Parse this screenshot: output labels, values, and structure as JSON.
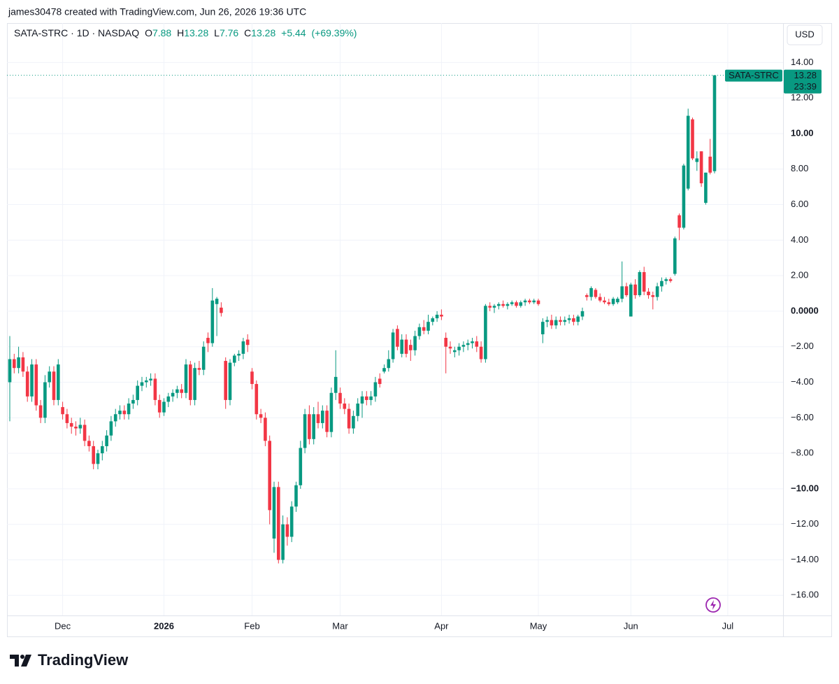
{
  "chart_data": {
    "type": "candlestick",
    "attribution": "james30478 created with TradingView.com, Jun 26, 2026 19:36 UTC",
    "symbol": "SATA-STRC · 1D · NASDAQ",
    "ohlc_labels": [
      "O",
      "H",
      "L",
      "C"
    ],
    "change": "+5.44",
    "change_pct": "(+69.39%)",
    "currency": "USD",
    "countdown": "23:39",
    "series_name": "SATA-STRC",
    "brand": "TradingView",
    "up_color": "#089981",
    "down_color": "#f23645",
    "ylim": [
      -17.13,
      16.14
    ],
    "yticks": [
      {
        "value": 14,
        "label": "14.00"
      },
      {
        "value": 12,
        "label": "12.00"
      },
      {
        "value": 10,
        "label": "10.00",
        "bold": true
      },
      {
        "value": 8,
        "label": "8.00"
      },
      {
        "value": 6,
        "label": "6.00"
      },
      {
        "value": 4,
        "label": "4.00"
      },
      {
        "value": 2,
        "label": "2.00"
      },
      {
        "value": 0,
        "label": "0.0000",
        "bold": true
      },
      {
        "value": -2,
        "label": "−2.00"
      },
      {
        "value": -4,
        "label": "−4.00"
      },
      {
        "value": -6,
        "label": "−6.00"
      },
      {
        "value": -8,
        "label": "−8.00"
      },
      {
        "value": -10,
        "label": "−10.00",
        "bold": true
      },
      {
        "value": -12,
        "label": "−12.00"
      },
      {
        "value": -14,
        "label": "−14.00"
      },
      {
        "value": -16,
        "label": "−16.00"
      }
    ],
    "xticks": [
      {
        "value": 12,
        "label": "Dec"
      },
      {
        "value": 35,
        "label": "2026",
        "bold": true
      },
      {
        "value": 55,
        "label": "Feb"
      },
      {
        "value": 75,
        "label": "Mar"
      },
      {
        "value": 98,
        "label": "Apr"
      },
      {
        "value": 120,
        "label": "May"
      },
      {
        "value": 141,
        "label": "Jun"
      },
      {
        "value": 163,
        "label": "Jul"
      }
    ],
    "grid": true,
    "ohlc": [
      [
        -4.0,
        -1.4,
        -6.2,
        -2.7
      ],
      [
        -2.7,
        -2.4,
        -3.5,
        -3.2
      ],
      [
        -3.2,
        -2.0,
        -3.5,
        -2.6
      ],
      [
        -2.6,
        -2.3,
        -3.7,
        -3.4
      ],
      [
        -3.4,
        -3.1,
        -5.1,
        -4.8
      ],
      [
        -4.8,
        -2.7,
        -5.1,
        -3.0
      ],
      [
        -3.0,
        -2.7,
        -5.6,
        -5.3
      ],
      [
        -5.3,
        -5.0,
        -6.3,
        -6.0
      ],
      [
        -6.0,
        -3.6,
        -6.3,
        -4.0
      ],
      [
        -4.0,
        -3.1,
        -4.3,
        -3.4
      ],
      [
        -3.4,
        -3.1,
        -5.3,
        -5.0
      ],
      [
        -5.0,
        -2.7,
        -5.3,
        -3.0
      ],
      [
        -5.4,
        -5.1,
        -6.1,
        -5.8
      ],
      [
        -5.8,
        -5.5,
        -6.6,
        -6.3
      ],
      [
        -6.3,
        -6.0,
        -6.9,
        -6.5
      ],
      [
        -6.5,
        -6.2,
        -7.0,
        -6.6
      ],
      [
        -6.6,
        -6.0,
        -6.9,
        -6.4
      ],
      [
        -6.4,
        -6.1,
        -7.6,
        -7.3
      ],
      [
        -7.3,
        -7.0,
        -7.9,
        -7.6
      ],
      [
        -7.6,
        -7.3,
        -8.9,
        -8.6
      ],
      [
        -8.6,
        -7.8,
        -8.9,
        -8.0
      ],
      [
        -8.0,
        -7.3,
        -8.4,
        -7.6
      ],
      [
        -7.6,
        -6.7,
        -7.9,
        -7.0
      ],
      [
        -7.0,
        -5.9,
        -7.3,
        -6.2
      ],
      [
        -6.2,
        -5.5,
        -6.5,
        -5.8
      ],
      [
        -5.8,
        -5.3,
        -6.1,
        -5.6
      ],
      [
        -5.6,
        -5.3,
        -6.1,
        -5.8
      ],
      [
        -5.8,
        -4.9,
        -6.1,
        -5.2
      ],
      [
        -5.2,
        -4.7,
        -5.5,
        -5.0
      ],
      [
        -5.0,
        -3.9,
        -5.3,
        -4.2
      ],
      [
        -4.2,
        -3.7,
        -4.5,
        -4.0
      ],
      [
        -4.0,
        -3.7,
        -4.3,
        -3.9
      ],
      [
        -3.9,
        -3.5,
        -4.2,
        -3.8
      ],
      [
        -3.8,
        -3.5,
        -5.3,
        -5.0
      ],
      [
        -5.0,
        -4.7,
        -6.0,
        -5.7
      ],
      [
        -5.7,
        -4.9,
        -5.9,
        -5.1
      ],
      [
        -5.1,
        -4.6,
        -5.4,
        -4.8
      ],
      [
        -4.8,
        -4.4,
        -5.1,
        -4.6
      ],
      [
        -4.6,
        -4.2,
        -4.9,
        -4.4
      ],
      [
        -4.4,
        -4.1,
        -4.9,
        -4.6
      ],
      [
        -4.6,
        -2.7,
        -4.9,
        -3.0
      ],
      [
        -3.0,
        -2.8,
        -5.3,
        -5.0
      ],
      [
        -5.0,
        -2.9,
        -5.3,
        -3.2
      ],
      [
        -3.2,
        -2.8,
        -3.6,
        -3.3
      ],
      [
        -3.3,
        -1.7,
        -3.6,
        -2.0
      ],
      [
        -1.5,
        -1.2,
        -2.3,
        -1.8
      ],
      [
        -1.8,
        1.3,
        -2.0,
        0.6
      ],
      [
        0.4,
        0.8,
        -1.4,
        0.7
      ],
      [
        0.2,
        0.5,
        -0.3,
        -0.1
      ],
      [
        -2.8,
        -2.6,
        -5.5,
        -5.0
      ],
      [
        -5.0,
        -2.7,
        -5.3,
        -2.9
      ],
      [
        -2.9,
        -2.4,
        -3.1,
        -2.5
      ],
      [
        -2.5,
        -2.2,
        -2.8,
        -2.4
      ],
      [
        -2.4,
        -1.5,
        -2.7,
        -1.7
      ],
      [
        -1.6,
        -1.3,
        -2.3,
        -1.9
      ],
      [
        -3.4,
        -3.2,
        -4.4,
        -4.1
      ],
      [
        -4.1,
        -3.9,
        -6.1,
        -5.8
      ],
      [
        -5.8,
        -5.5,
        -6.3,
        -6.0
      ],
      [
        -6.0,
        -5.7,
        -7.6,
        -7.3
      ],
      [
        -7.3,
        -7.0,
        -12.0,
        -11.2
      ],
      [
        -12.8,
        -9.6,
        -13.6,
        -9.9
      ],
      [
        -9.9,
        -9.6,
        -14.2,
        -14.0
      ],
      [
        -14.0,
        -11.5,
        -14.2,
        -12.0
      ],
      [
        -12.0,
        -11.6,
        -13.2,
        -12.7
      ],
      [
        -12.7,
        -10.7,
        -13.0,
        -11.0
      ],
      [
        -11.0,
        -9.6,
        -11.3,
        -9.8
      ],
      [
        -9.8,
        -7.3,
        -10.0,
        -7.7
      ],
      [
        -7.7,
        -5.5,
        -8.0,
        -5.8
      ],
      [
        -5.8,
        -5.3,
        -7.5,
        -7.2
      ],
      [
        -7.2,
        -5.4,
        -7.5,
        -5.8
      ],
      [
        -5.8,
        -5.1,
        -6.6,
        -6.3
      ],
      [
        -6.3,
        -5.3,
        -6.6,
        -5.6
      ],
      [
        -5.6,
        -5.3,
        -7.1,
        -6.8
      ],
      [
        -6.8,
        -4.3,
        -7.1,
        -4.6
      ],
      [
        -4.6,
        -2.2,
        -5.0,
        -3.7
      ],
      [
        -4.6,
        -4.3,
        -5.5,
        -5.2
      ],
      [
        -5.2,
        -4.9,
        -5.8,
        -5.5
      ],
      [
        -5.5,
        -5.2,
        -6.9,
        -6.6
      ],
      [
        -6.6,
        -5.6,
        -6.9,
        -5.9
      ],
      [
        -5.9,
        -4.9,
        -6.2,
        -5.2
      ],
      [
        -5.2,
        -4.5,
        -6.0,
        -4.8
      ],
      [
        -4.8,
        -4.5,
        -5.3,
        -5.0
      ],
      [
        -5.0,
        -4.5,
        -5.3,
        -4.8
      ],
      [
        -4.8,
        -3.7,
        -5.1,
        -4.0
      ],
      [
        -3.8,
        -3.5,
        -4.3,
        -4.1
      ],
      [
        -3.4,
        -3.0,
        -3.5,
        -3.2
      ],
      [
        -3.2,
        -2.2,
        -3.4,
        -2.7
      ],
      [
        -2.7,
        -1.0,
        -2.9,
        -1.2
      ],
      [
        -1.0,
        -0.8,
        -2.2,
        -2.0
      ],
      [
        -2.4,
        -1.3,
        -2.6,
        -1.6
      ],
      [
        -1.6,
        -1.3,
        -2.6,
        -2.4
      ],
      [
        -1.9,
        -1.6,
        -2.8,
        -2.2
      ],
      [
        -2.2,
        -1.1,
        -2.5,
        -1.4
      ],
      [
        -1.4,
        -0.7,
        -1.6,
        -0.9
      ],
      [
        -0.9,
        -0.5,
        -1.3,
        -1.1
      ],
      [
        -1.1,
        -0.2,
        -1.3,
        -0.6
      ],
      [
        -0.6,
        -0.3,
        -0.8,
        -0.4
      ],
      [
        -0.4,
        0.0,
        -0.6,
        -0.2
      ],
      [
        -0.2,
        0.1,
        -0.5,
        -0.3
      ],
      [
        -1.5,
        -1.2,
        -3.5,
        -2.0
      ],
      [
        -2.0,
        -1.7,
        -2.4,
        -2.1
      ],
      [
        -2.3,
        -2.0,
        -2.6,
        -2.2
      ],
      [
        -2.2,
        -1.8,
        -2.5,
        -2.0
      ],
      [
        -2.0,
        -1.7,
        -2.3,
        -1.9
      ],
      [
        -1.9,
        -1.6,
        -2.2,
        -1.8
      ],
      [
        -1.8,
        -1.5,
        -2.1,
        -1.7
      ],
      [
        -1.7,
        -1.4,
        -2.3,
        -2.0
      ],
      [
        -2.0,
        -1.7,
        -2.9,
        -2.7
      ],
      [
        -2.7,
        0.4,
        -2.9,
        0.3
      ],
      [
        0.3,
        0.5,
        0.0,
        0.2
      ],
      [
        0.2,
        0.4,
        -0.1,
        0.3
      ],
      [
        0.3,
        0.5,
        0.1,
        0.4
      ],
      [
        0.4,
        0.6,
        0.2,
        0.3
      ],
      [
        0.3,
        0.5,
        0.1,
        0.4
      ],
      [
        0.4,
        0.6,
        0.3,
        0.5
      ],
      [
        0.5,
        0.6,
        0.2,
        0.3
      ],
      [
        0.3,
        0.6,
        0.2,
        0.5
      ],
      [
        0.5,
        0.7,
        0.3,
        0.6
      ],
      [
        0.6,
        0.7,
        0.4,
        0.5
      ],
      [
        0.5,
        0.7,
        0.4,
        0.6
      ],
      [
        0.6,
        0.7,
        0.3,
        0.4
      ],
      [
        -1.3,
        -0.4,
        -1.8,
        -0.6
      ],
      [
        -0.6,
        -0.3,
        -0.9,
        -0.5
      ],
      [
        -0.5,
        -0.2,
        -1.0,
        -0.8
      ],
      [
        -0.8,
        -0.3,
        -1.0,
        -0.5
      ],
      [
        -0.5,
        -0.3,
        -0.8,
        -0.6
      ],
      [
        -0.6,
        -0.3,
        -0.8,
        -0.5
      ],
      [
        -0.5,
        -0.2,
        -0.7,
        -0.4
      ],
      [
        -0.4,
        -0.2,
        -0.8,
        -0.6
      ],
      [
        -0.6,
        -0.2,
        -0.8,
        -0.3
      ],
      [
        -0.3,
        0.2,
        -0.5,
        0.0
      ],
      [
        0.9,
        1.0,
        0.6,
        0.8
      ],
      [
        0.8,
        1.4,
        0.6,
        1.3
      ],
      [
        1.2,
        1.3,
        0.7,
        0.8
      ],
      [
        0.8,
        1.0,
        0.5,
        0.6
      ],
      [
        0.6,
        0.8,
        0.4,
        0.5
      ],
      [
        0.5,
        0.7,
        0.3,
        0.4
      ],
      [
        0.4,
        0.8,
        0.3,
        0.7
      ],
      [
        0.5,
        0.8,
        0.4,
        0.7
      ],
      [
        0.7,
        2.8,
        0.5,
        1.4
      ],
      [
        1.4,
        1.6,
        0.8,
        0.9
      ],
      [
        -0.3,
        1.6,
        -0.3,
        1.5
      ],
      [
        1.5,
        1.8,
        0.7,
        0.9
      ],
      [
        0.9,
        2.3,
        0.8,
        2.2
      ],
      [
        2.2,
        2.5,
        0.9,
        1.1
      ],
      [
        1.1,
        1.3,
        0.7,
        0.9
      ],
      [
        0.9,
        1.1,
        0.1,
        0.8
      ],
      [
        0.8,
        1.6,
        0.6,
        1.4
      ],
      [
        1.4,
        1.9,
        1.1,
        1.7
      ],
      [
        1.7,
        1.9,
        1.5,
        1.8
      ],
      [
        1.8,
        1.9,
        1.6,
        1.7
      ],
      [
        2.1,
        4.2,
        2.0,
        4.1
      ],
      [
        5.4,
        5.5,
        4.0,
        4.7
      ],
      [
        4.7,
        8.3,
        4.6,
        8.2
      ],
      [
        6.9,
        11.4,
        6.8,
        11.0
      ],
      [
        10.8,
        10.9,
        8.5,
        8.6
      ],
      [
        8.4,
        9.0,
        7.9,
        8.6
      ],
      [
        9.0,
        9.0,
        7.0,
        7.2
      ],
      [
        6.1,
        7.8,
        6.0,
        7.8
      ],
      [
        8.7,
        9.7,
        7.7,
        7.8
      ],
      [
        7.88,
        13.28,
        7.76,
        13.28
      ]
    ]
  }
}
